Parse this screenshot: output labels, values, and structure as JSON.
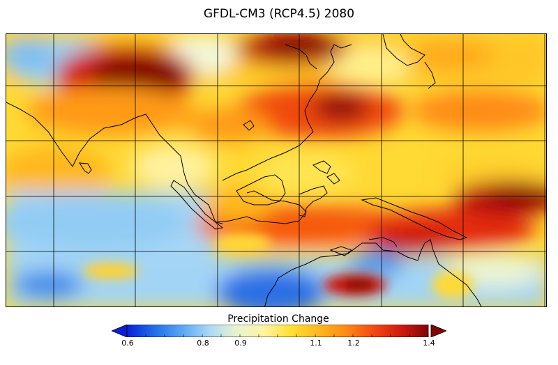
{
  "title": "GFDL-CM3 (RCP4.5) 2080",
  "colorbar": {
    "label": "Precipitation Change",
    "min": 0.6,
    "max": 1.4,
    "ticks": [
      "0.6",
      "0.8",
      "0.9",
      "1.1",
      "1.2",
      "1.4"
    ],
    "colors": [
      "#0a1fd6",
      "#1f6fe8",
      "#5aa6f2",
      "#a9d8f6",
      "#e9f3d0",
      "#fff5a0",
      "#ffdf33",
      "#ffb81f",
      "#ff8a14",
      "#f24a12",
      "#d01a10",
      "#7e0606"
    ]
  },
  "map": {
    "region": "Southeast Asia / Western Pacific",
    "field": "precipitation-ratio"
  }
}
